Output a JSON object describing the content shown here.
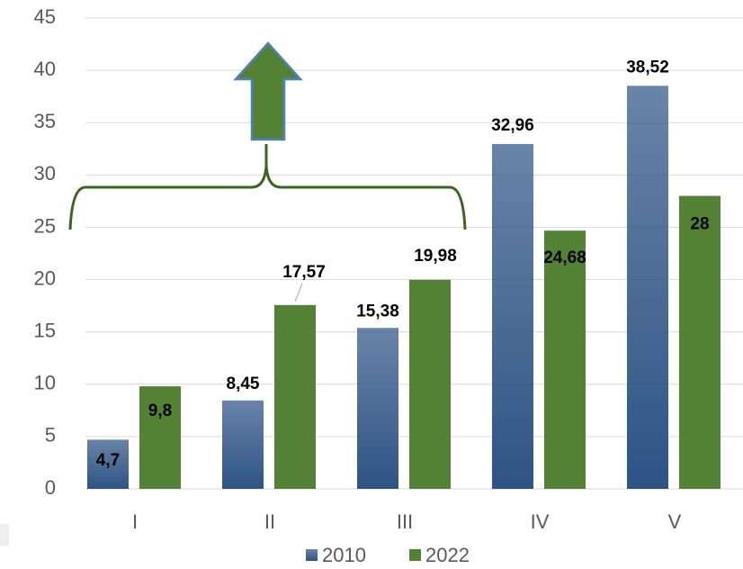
{
  "chart_data": {
    "type": "bar",
    "categories": [
      "I",
      "II",
      "III",
      "IV",
      "V"
    ],
    "series": [
      {
        "name": "2010",
        "color": "#2e5485",
        "values": [
          4.7,
          8.45,
          15.38,
          32.96,
          38.52
        ],
        "value_labels": [
          "4,7",
          "8,45",
          "15,38",
          "32,96",
          "38,52"
        ]
      },
      {
        "name": "2022",
        "color": "#548235",
        "values": [
          9.8,
          17.57,
          19.98,
          24.68,
          28
        ],
        "value_labels": [
          "9,8",
          "17,57",
          "19,98",
          "24,68",
          "28"
        ]
      }
    ],
    "ylim": [
      0,
      45
    ],
    "yticks": [
      0,
      5,
      10,
      15,
      20,
      25,
      30,
      35,
      40,
      45
    ],
    "grid": true,
    "legend": "bottom"
  }
}
